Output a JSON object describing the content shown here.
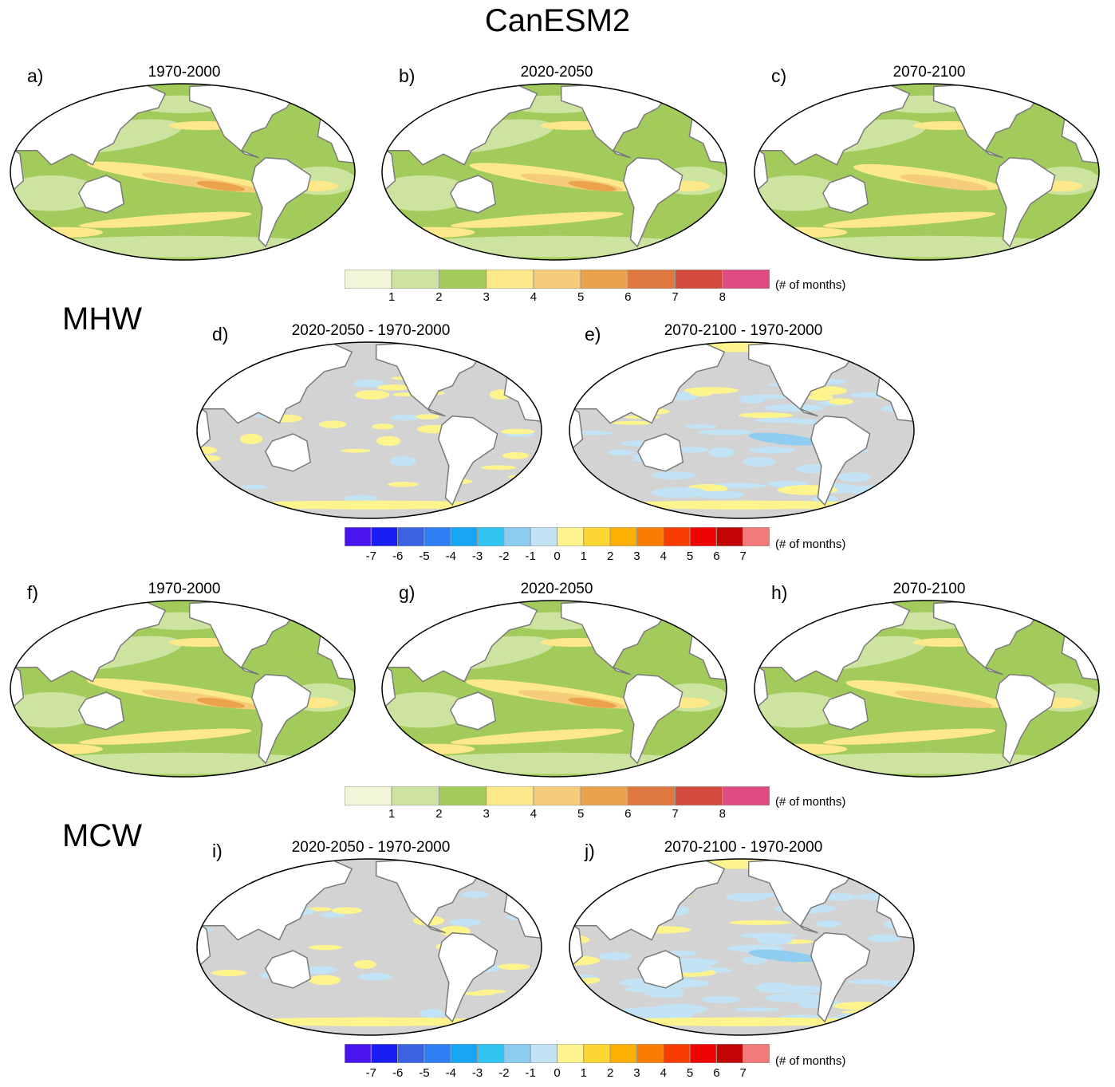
{
  "figure": {
    "title": "CanESM2",
    "sections": {
      "mhw": "MHW",
      "mcw": "MCW"
    }
  },
  "panels": [
    {
      "letter": "a)",
      "title": "1970-2000",
      "kind": "abs",
      "intensity": 1.0
    },
    {
      "letter": "b)",
      "title": "2020-2050",
      "kind": "abs",
      "intensity": 0.85
    },
    {
      "letter": "c)",
      "title": "2070-2100",
      "kind": "abs",
      "intensity": 0.7
    },
    {
      "letter": "d)",
      "title": "2020-2050 - 1970-2000",
      "kind": "diff",
      "intensity": 0.35
    },
    {
      "letter": "e)",
      "title": "2070-2100 - 1970-2000",
      "kind": "diff",
      "intensity": 1.0
    },
    {
      "letter": "f)",
      "title": "1970-2000",
      "kind": "abs",
      "intensity": 1.0
    },
    {
      "letter": "g)",
      "title": "2020-2050",
      "kind": "abs",
      "intensity": 0.9
    },
    {
      "letter": "h)",
      "title": "2070-2100",
      "kind": "abs",
      "intensity": 0.8
    },
    {
      "letter": "i)",
      "title": "2020-2050 - 1970-2000",
      "kind": "diff",
      "intensity": 0.35
    },
    {
      "letter": "j)",
      "title": "2070-2100 - 1970-2000",
      "kind": "diff",
      "intensity": 1.0
    }
  ],
  "colorbars": {
    "absolute": {
      "unit": "(# of months)",
      "ticks": [
        "1",
        "2",
        "3",
        "4",
        "5",
        "6",
        "7",
        "8"
      ],
      "colors": [
        "#f2f5d8",
        "#cde4a0",
        "#a3cb5b",
        "#fde98a",
        "#f5cd7a",
        "#eba24c",
        "#de7840",
        "#d44a3e",
        "#e04a82"
      ]
    },
    "difference": {
      "unit": "(# of months)",
      "ticks": [
        "-7",
        "-6",
        "-5",
        "-4",
        "-3",
        "-2",
        "-1",
        "0",
        "1",
        "2",
        "3",
        "4",
        "5",
        "6",
        "7"
      ],
      "colors": [
        "#4a14f0",
        "#1a1ef2",
        "#3a62e2",
        "#2c7ff4",
        "#18a6f2",
        "#30c4f0",
        "#8ecdf0",
        "#c2e3f6",
        "#fef48e",
        "#fdd634",
        "#fcb004",
        "#fb7c02",
        "#f83c02",
        "#ef0404",
        "#c10404",
        "#f27a7a"
      ]
    }
  },
  "palette": {
    "gray": "#d3d3d3",
    "land": "#ffffff",
    "coast": "#7a7a7a",
    "outline": "#000000"
  }
}
